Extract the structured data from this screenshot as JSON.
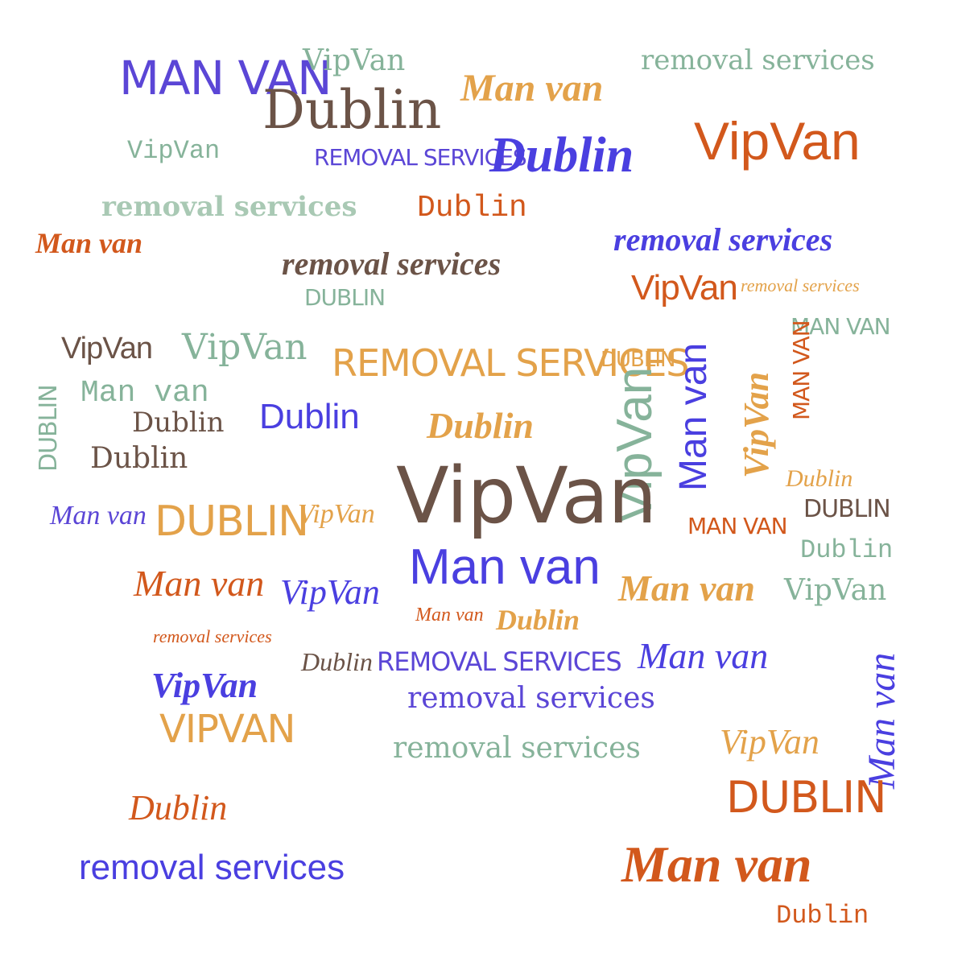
{
  "words": {
    "man_van": "Man van",
    "man_van_caps": "MAN VAN",
    "vipvan": "VipVan",
    "vipvan_caps": "VIPVAN",
    "dublin": "Dublin",
    "dublin_caps": "DUBLIN",
    "removal": "removal services",
    "removal_caps": "REMOVAL SERVICES"
  },
  "colors": {
    "blue": "#4a3fe0",
    "orange": "#d2581c",
    "sand": "#e3a24a",
    "sage": "#86b39a",
    "brown": "#6b5347",
    "gray": "#8a8280",
    "purple": "#5b46d6"
  }
}
